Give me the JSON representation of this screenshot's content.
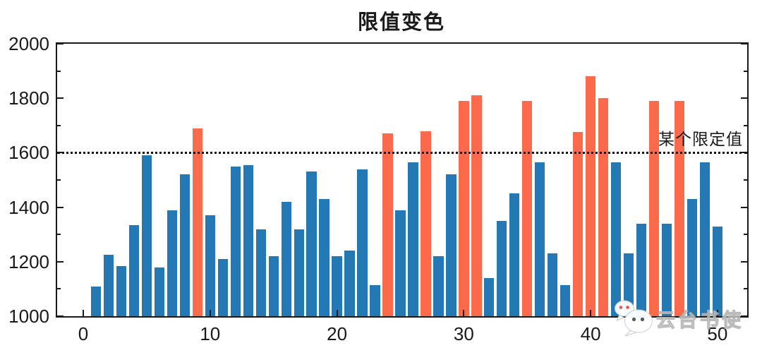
{
  "title": "限值变色",
  "limit_annotation": "某个限定值",
  "watermark": {
    "text": "云台书使",
    "icon": "wechat-chat-bubbles-icon"
  },
  "colors": {
    "bar_below_limit": "#2478b4",
    "bar_above_limit": "#fb6a4b",
    "axis": "#1a1a1a",
    "limit_line": "#111111"
  },
  "chart_data": {
    "type": "bar",
    "title": "限值变色",
    "xlabel": "",
    "ylabel": "",
    "x": [
      1,
      2,
      3,
      4,
      5,
      6,
      7,
      8,
      9,
      10,
      11,
      12,
      13,
      14,
      15,
      16,
      17,
      18,
      19,
      20,
      21,
      22,
      23,
      24,
      25,
      26,
      27,
      28,
      29,
      30,
      31,
      32,
      33,
      34,
      35,
      36,
      37,
      38,
      39,
      40,
      41,
      42,
      43,
      44,
      45,
      46,
      47,
      48,
      49,
      50
    ],
    "values": [
      1110,
      1225,
      1185,
      1335,
      1590,
      1180,
      1390,
      1520,
      1690,
      1370,
      1210,
      1550,
      1555,
      1320,
      1220,
      1420,
      1320,
      1530,
      1430,
      1220,
      1240,
      1540,
      1115,
      1670,
      1390,
      1565,
      1680,
      1220,
      1520,
      1790,
      1810,
      1140,
      1350,
      1450,
      1790,
      1565,
      1230,
      1115,
      1675,
      1880,
      1800,
      1565,
      1230,
      1340,
      1790,
      1340,
      1790,
      1430,
      1565,
      1330
    ],
    "limit": {
      "value": 1600,
      "label": "某个限定值",
      "style": "dotted"
    },
    "color_rule": "bars above limit are orange, below are blue",
    "xlim": [
      -2.06,
      52.34
    ],
    "ylim": [
      1000,
      2000
    ],
    "xticks": [
      0,
      10,
      20,
      30,
      40,
      50
    ],
    "xtick_labels": [
      "0",
      "10",
      "20",
      "30",
      "40",
      "50"
    ],
    "yticks_major": [
      1000,
      1200,
      1400,
      1600,
      1800,
      2000
    ],
    "ytick_labels": [
      "1000",
      "1200",
      "1400",
      "1600",
      "1800",
      "2000"
    ],
    "yticks_minor": [
      1100,
      1300,
      1500,
      1700,
      1900
    ],
    "bar_width_units": 0.8,
    "grid": false,
    "legend": "none",
    "tick_direction": "in",
    "tick_sides": [
      "left",
      "right",
      "bottom"
    ]
  }
}
